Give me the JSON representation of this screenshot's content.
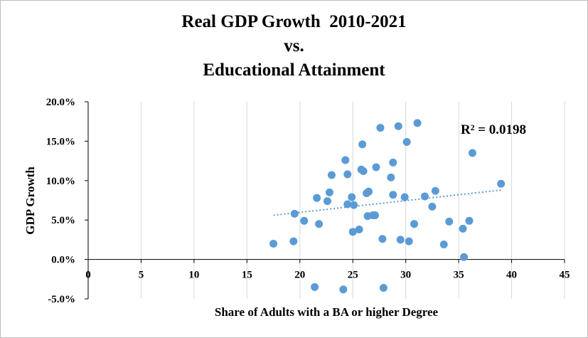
{
  "chart_data": {
    "type": "scatter",
    "title_lines": [
      "Real GDP Growth  2010-2021",
      "vs.",
      "Educational Attainment"
    ],
    "xlabel": "Share of Adults with a BA or higher Degree",
    "ylabel": "GDP Growth",
    "xlim": [
      0,
      45
    ],
    "ylim": [
      -0.05,
      0.2
    ],
    "x_ticks": [
      "0",
      "5",
      "10",
      "15",
      "20",
      "25",
      "30",
      "35",
      "40",
      "45"
    ],
    "y_ticks": [
      "-5.0%",
      "0.0%",
      "5.0%",
      "10.0%",
      "15.0%",
      "20.0%"
    ],
    "grid": "vertical",
    "marker_color": "#5b9bd5",
    "trendline": {
      "type": "linear",
      "x_start": 17.5,
      "y_start": 0.056,
      "x_end": 39.0,
      "y_end": 0.088,
      "style": "dotted"
    },
    "annotation": "R² = 0.0198",
    "points": [
      {
        "x": 17.5,
        "y": 0.02
      },
      {
        "x": 19.4,
        "y": 0.023
      },
      {
        "x": 19.5,
        "y": 0.058
      },
      {
        "x": 20.4,
        "y": 0.049
      },
      {
        "x": 21.4,
        "y": -0.035
      },
      {
        "x": 21.6,
        "y": 0.078
      },
      {
        "x": 21.8,
        "y": 0.045
      },
      {
        "x": 22.6,
        "y": 0.074
      },
      {
        "x": 22.8,
        "y": 0.085
      },
      {
        "x": 23.0,
        "y": 0.107
      },
      {
        "x": 24.1,
        "y": -0.038
      },
      {
        "x": 24.3,
        "y": 0.126
      },
      {
        "x": 24.5,
        "y": 0.108
      },
      {
        "x": 24.5,
        "y": 0.07
      },
      {
        "x": 24.9,
        "y": 0.079
      },
      {
        "x": 25.0,
        "y": 0.035
      },
      {
        "x": 25.1,
        "y": 0.069
      },
      {
        "x": 25.6,
        "y": 0.038
      },
      {
        "x": 25.8,
        "y": 0.114
      },
      {
        "x": 25.9,
        "y": 0.146
      },
      {
        "x": 26.0,
        "y": 0.112
      },
      {
        "x": 26.3,
        "y": 0.084
      },
      {
        "x": 26.4,
        "y": 0.055
      },
      {
        "x": 26.5,
        "y": 0.086
      },
      {
        "x": 26.9,
        "y": 0.056
      },
      {
        "x": 27.1,
        "y": 0.056
      },
      {
        "x": 27.2,
        "y": 0.117
      },
      {
        "x": 27.6,
        "y": 0.167
      },
      {
        "x": 27.8,
        "y": 0.026
      },
      {
        "x": 27.9,
        "y": -0.036
      },
      {
        "x": 28.6,
        "y": 0.104
      },
      {
        "x": 28.8,
        "y": 0.082
      },
      {
        "x": 28.8,
        "y": 0.123
      },
      {
        "x": 29.3,
        "y": 0.169
      },
      {
        "x": 29.5,
        "y": 0.025
      },
      {
        "x": 29.9,
        "y": 0.079
      },
      {
        "x": 30.1,
        "y": 0.149
      },
      {
        "x": 30.3,
        "y": 0.023
      },
      {
        "x": 30.8,
        "y": 0.045
      },
      {
        "x": 31.1,
        "y": 0.173
      },
      {
        "x": 31.8,
        "y": 0.08
      },
      {
        "x": 32.5,
        "y": 0.067
      },
      {
        "x": 32.8,
        "y": 0.087
      },
      {
        "x": 33.6,
        "y": 0.019
      },
      {
        "x": 34.1,
        "y": 0.048
      },
      {
        "x": 35.4,
        "y": 0.039
      },
      {
        "x": 35.5,
        "y": 0.003
      },
      {
        "x": 36.0,
        "y": 0.049
      },
      {
        "x": 36.3,
        "y": 0.135
      },
      {
        "x": 39.0,
        "y": 0.096
      }
    ]
  }
}
